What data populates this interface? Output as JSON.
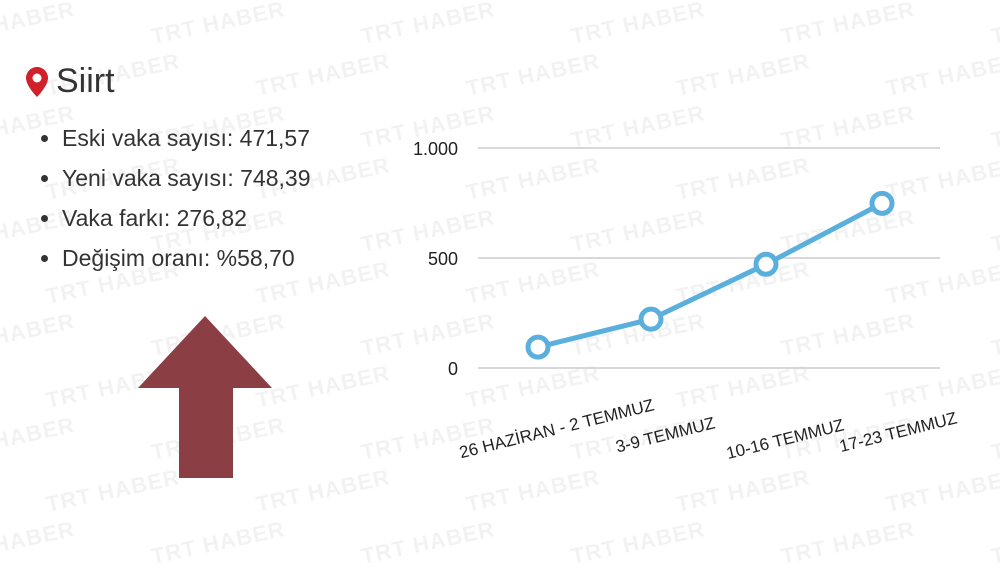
{
  "watermark": "TRT HABER",
  "title": "Siirt",
  "stats": [
    "Eski vaka sayısı: 471,57",
    "Yeni vaka sayısı: 748,39",
    "Vaka farkı: 276,82",
    "Değişim oranı: %58,70"
  ],
  "trend": "up",
  "colors": {
    "pin": "#d0202a",
    "arrow": "#8b3f45",
    "line": "#5aafdc",
    "grid": "#cccccc"
  },
  "chart_data": {
    "type": "line",
    "categories": [
      "26 HAZİRAN - 2 TEMMUZ",
      "3-9 TEMMUZ",
      "10-16 TEMMUZ",
      "17-23 TEMMUZ"
    ],
    "series": [
      {
        "values": [
          95,
          222,
          471.57,
          748.39
        ]
      }
    ],
    "ylim": [
      0,
      1000
    ],
    "yticks": [
      0,
      500,
      1000
    ],
    "ytick_labels": [
      "0",
      "500",
      "1.000"
    ],
    "grid": true
  }
}
